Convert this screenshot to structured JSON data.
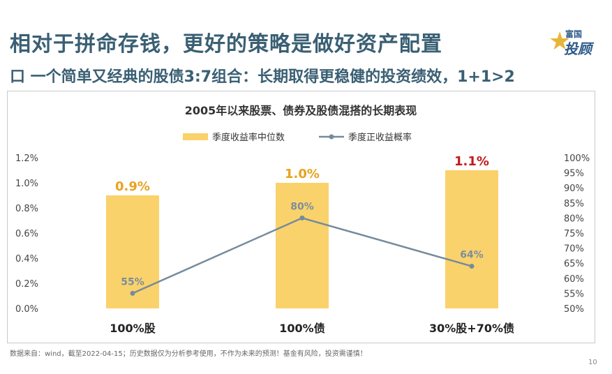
{
  "header": {
    "title": "相对于拼命存钱，更好的策略是做好资产配置",
    "subtitle": "口 一个简单又经典的股债3:7组合：长期取得更稳健的投资绩效，1+1>2"
  },
  "logo": {
    "top": "富国",
    "main": "投顾",
    "star": "★"
  },
  "colors": {
    "bar": "#fad26b",
    "line": "#758b9c",
    "label_orange": "#e7a21f",
    "label_red": "#c01b1b",
    "title_blue": "#3a5f73"
  },
  "chart_data": {
    "type": "bar+line",
    "title": "2005年以来股票、债券及股债混搭的长期表现",
    "categories": [
      "100%股",
      "100%债",
      "30%股+70%债"
    ],
    "series": [
      {
        "name": "季度收益率中位数",
        "type": "bar",
        "axis": "left",
        "values": [
          0.009,
          0.01,
          0.011
        ],
        "labels": [
          "0.9%",
          "1.0%",
          "1.1%"
        ]
      },
      {
        "name": "季度正收益概率",
        "type": "line",
        "axis": "right",
        "values": [
          55,
          80,
          64
        ],
        "labels": [
          "55%",
          "80%",
          "64%"
        ]
      }
    ],
    "y_left": {
      "min": 0,
      "max": 0.012,
      "ticks": [
        "0.0%",
        "0.2%",
        "0.4%",
        "0.6%",
        "0.8%",
        "1.0%",
        "1.2%"
      ]
    },
    "y_right": {
      "min": 50,
      "max": 100,
      "ticks": [
        "50%",
        "55%",
        "60%",
        "65%",
        "70%",
        "75%",
        "80%",
        "85%",
        "90%",
        "95%",
        "100%"
      ]
    },
    "legend_position": "top-center"
  },
  "footnote": "数据来自：wind，截至2022-04-15；历史数据仅为分析参考使用，不作为未来的预测！基金有风险，投资需谨慎！",
  "page_number": "10"
}
